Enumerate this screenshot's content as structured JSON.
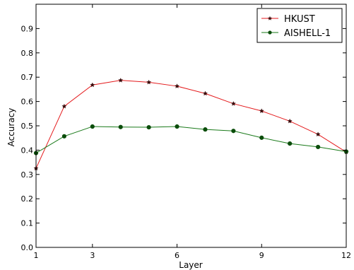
{
  "chart_data": {
    "type": "line",
    "title": "",
    "xlabel": "Layer",
    "ylabel": "Accuracy",
    "xlim": [
      1,
      12
    ],
    "ylim": [
      0.0,
      1.0
    ],
    "xticks": [
      1,
      3,
      6,
      9,
      12
    ],
    "yticks": [
      0.0,
      0.1,
      0.2,
      0.3,
      0.4,
      0.5,
      0.6,
      0.7,
      0.8,
      0.9
    ],
    "grid": false,
    "legend_position": "top-right",
    "x": [
      1,
      2,
      3,
      4,
      5,
      6,
      7,
      8,
      9,
      10,
      11,
      12
    ],
    "series": [
      {
        "name": "HKUST",
        "color": "#e41a1c",
        "marker": "star",
        "values": [
          0.325,
          0.58,
          0.668,
          0.687,
          0.679,
          0.663,
          0.633,
          0.591,
          0.561,
          0.519,
          0.465,
          0.392
        ]
      },
      {
        "name": "AISHELL-1",
        "color": "#1a7a1a",
        "marker": "circle",
        "values": [
          0.388,
          0.457,
          0.497,
          0.495,
          0.494,
          0.497,
          0.485,
          0.479,
          0.451,
          0.427,
          0.413,
          0.394
        ]
      }
    ]
  }
}
